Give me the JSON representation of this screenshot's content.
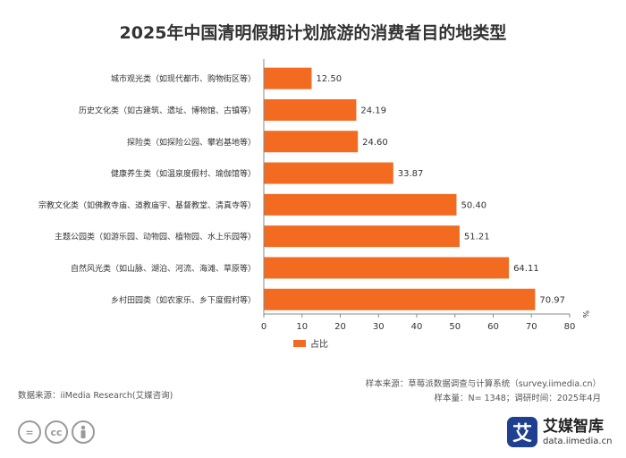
{
  "chart_data": {
    "type": "bar",
    "orientation": "horizontal",
    "title": "2025年中国清明假期计划旅游的消费者目的地类型",
    "categories": [
      "城市观光类（如现代都市、购物街区等）",
      "历史文化类（如古建筑、遗址、博物馆、古镇等）",
      "探险类（如探险公园、攀岩基地等）",
      "健康养生类（如温泉度假村、瑜伽馆等）",
      "宗教文化类（如佛教寺庙、道教庙宇、基督教堂、清真寺等）",
      "主题公园类（如游乐园、动物园、植物园、水上乐园等）",
      "自然风光类（如山脉、湖泊、河流、海滩、草原等）",
      "乡村田园类（如农家乐、乡下度假村等）"
    ],
    "series": [
      {
        "name": "占比",
        "values": [
          12.5,
          24.19,
          24.6,
          33.87,
          50.4,
          51.21,
          64.11,
          70.97
        ],
        "color": "#f26b21"
      }
    ],
    "value_labels": [
      "12.50",
      "24.19",
      "24.60",
      "33.87",
      "50.40",
      "51.21",
      "64.11",
      "70.97"
    ],
    "xlim": [
      0,
      80
    ],
    "xticks": [
      0,
      10,
      20,
      30,
      40,
      50,
      60,
      70,
      80
    ],
    "xunit": "%",
    "legend": "bottom-center",
    "grid": false
  },
  "source": {
    "sample_source": "样本来源：草莓派数据调查与计算系统（survey.iimedia.cn）",
    "sample_size": "样本量：N= 1348；调研时间：2025年4月",
    "data_source": "数据来源：iiMedia Research(艾媒咨询)"
  },
  "footer": {
    "license_icons": [
      "=",
      "cc",
      "person-icon"
    ],
    "brand_logo_char": "艾",
    "brand_name": "艾媒智库",
    "brand_url": "data.iimedia.cn"
  },
  "colors": {
    "bar": "#f26b21",
    "axis": "#888888",
    "brand": "#1f3f8f"
  }
}
